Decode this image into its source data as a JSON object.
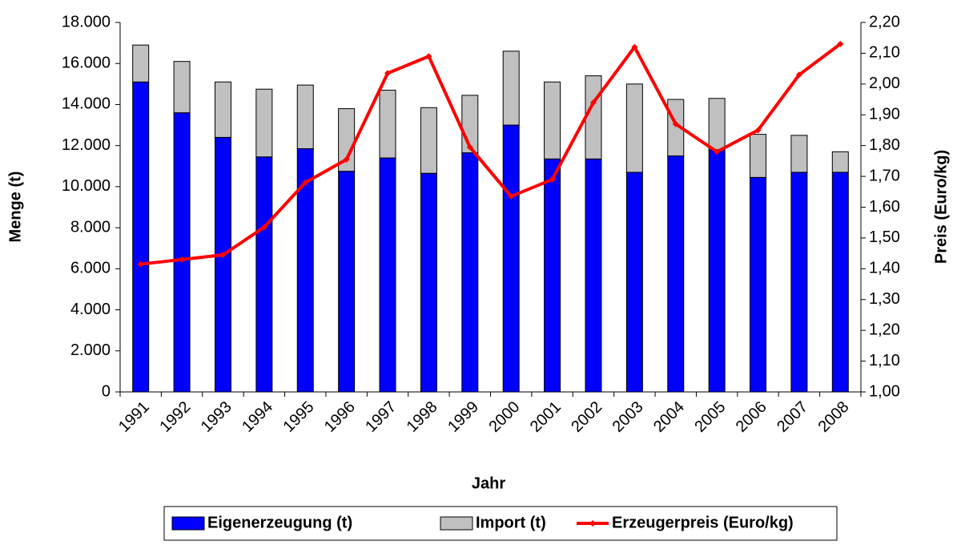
{
  "chart_data": {
    "type": "bar",
    "stacked": true,
    "x_label": "Jahr",
    "y_label": "Menge (t)",
    "y2_label": "Preis (Euro/kg)",
    "categories": [
      "1991",
      "1992",
      "1993",
      "1994",
      "1995",
      "1996",
      "1997",
      "1998",
      "1999",
      "2000",
      "2001",
      "2002",
      "2003",
      "2004",
      "2005",
      "2006",
      "2007",
      "2008"
    ],
    "series": [
      {
        "name": "Eigenerzeugung (t)",
        "type": "bar",
        "color": "#0000ff",
        "values": [
          15100,
          13600,
          12400,
          11450,
          11850,
          10750,
          11400,
          10650,
          11650,
          13000,
          11350,
          11350,
          10700,
          11500,
          11800,
          10450,
          10700,
          10700
        ]
      },
      {
        "name": "Import (t)",
        "type": "bar",
        "color": "#c0c0c0",
        "values": [
          1800,
          2500,
          2700,
          3300,
          3100,
          3050,
          3300,
          3200,
          2800,
          3600,
          3750,
          4050,
          4300,
          2750,
          2500,
          2100,
          1800,
          1000
        ]
      },
      {
        "name": "Erzeugerpreis (Euro/kg)",
        "type": "line",
        "axis": "y2",
        "color": "#ff0000",
        "values": [
          1.415,
          1.43,
          1.445,
          1.535,
          1.68,
          1.755,
          2.035,
          2.09,
          1.795,
          1.635,
          1.69,
          1.94,
          2.12,
          1.87,
          1.78,
          1.85,
          2.03,
          2.13
        ]
      }
    ],
    "ylim": [
      0,
      18000
    ],
    "yticks": [
      0,
      {
        "value": 2000,
        "label": "2.000"
      },
      {
        "value": 4000,
        "label": "4.000"
      },
      {
        "value": 6000,
        "label": "6.000"
      },
      {
        "value": 8000,
        "label": "8.000"
      },
      {
        "value": 10000,
        "label": "10.000"
      },
      {
        "value": 12000,
        "label": "12.000"
      },
      {
        "value": 14000,
        "label": "14.000"
      },
      {
        "value": 16000,
        "label": "16.000"
      },
      {
        "value": 18000,
        "label": "18.000"
      }
    ],
    "y2lim": [
      1.0,
      2.2
    ],
    "y2ticks": [
      {
        "value": 1.0,
        "label": "1,00"
      },
      {
        "value": 1.1,
        "label": "1,10"
      },
      {
        "value": 1.2,
        "label": "1,20"
      },
      {
        "value": 1.3,
        "label": "1,30"
      },
      {
        "value": 1.4,
        "label": "1,40"
      },
      {
        "value": 1.5,
        "label": "1,50"
      },
      {
        "value": 1.6,
        "label": "1,60"
      },
      {
        "value": 1.7,
        "label": "1,70"
      },
      {
        "value": 1.8,
        "label": "1,80"
      },
      {
        "value": 1.9,
        "label": "1,90"
      },
      {
        "value": 2.0,
        "label": "2,00"
      },
      {
        "value": 2.1,
        "label": "2,10"
      },
      {
        "value": 2.2,
        "label": "2,20"
      }
    ],
    "grid": false,
    "legend": "bottom"
  }
}
